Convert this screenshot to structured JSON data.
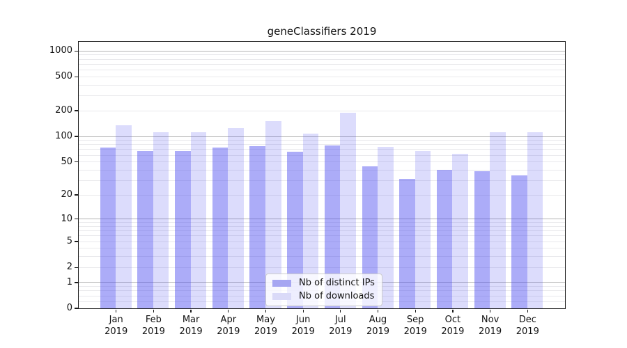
{
  "title": "geneClassifiers 2019",
  "chart_data": {
    "type": "bar",
    "title": "geneClassifiers 2019",
    "x_categories": [
      "Jan",
      "Feb",
      "Mar",
      "Apr",
      "May",
      "Jun",
      "Jul",
      "Aug",
      "Sep",
      "Oct",
      "Nov",
      "Dec"
    ],
    "x_year": "2019",
    "series": [
      {
        "name": "Nb of distinct IPs",
        "color": "rgba(70,70,240,0.45)",
        "swatch_color": "#a6a6f2",
        "values": [
          73,
          66,
          66,
          73,
          76,
          65,
          78,
          44,
          31,
          40,
          38,
          34
        ]
      },
      {
        "name": "Nb of downloads",
        "color": "rgba(70,70,240,0.19)",
        "swatch_color": "#dadaf8",
        "values": [
          133,
          110,
          112,
          125,
          149,
          107,
          189,
          74,
          66,
          62,
          112,
          110
        ]
      }
    ],
    "yscale": "log1p",
    "yticks": [
      0,
      1,
      2,
      5,
      10,
      20,
      50,
      100,
      200,
      500,
      1000
    ],
    "ylim": [
      0,
      1280
    ],
    "grid": {
      "major": [
        1,
        10,
        100,
        1000
      ],
      "minor_mantissas": [
        2,
        3,
        4,
        5,
        6,
        7,
        8,
        9
      ],
      "minor_sub1": [
        0.2,
        0.4,
        0.6,
        0.8
      ]
    },
    "legend_position": "lower center",
    "bar_width_fraction": 0.42
  },
  "colors": {
    "major_grid": "#b3b3b3",
    "minor_grid": "#e9e9ec",
    "spine": "#1a1a1a",
    "text": "#111111"
  }
}
